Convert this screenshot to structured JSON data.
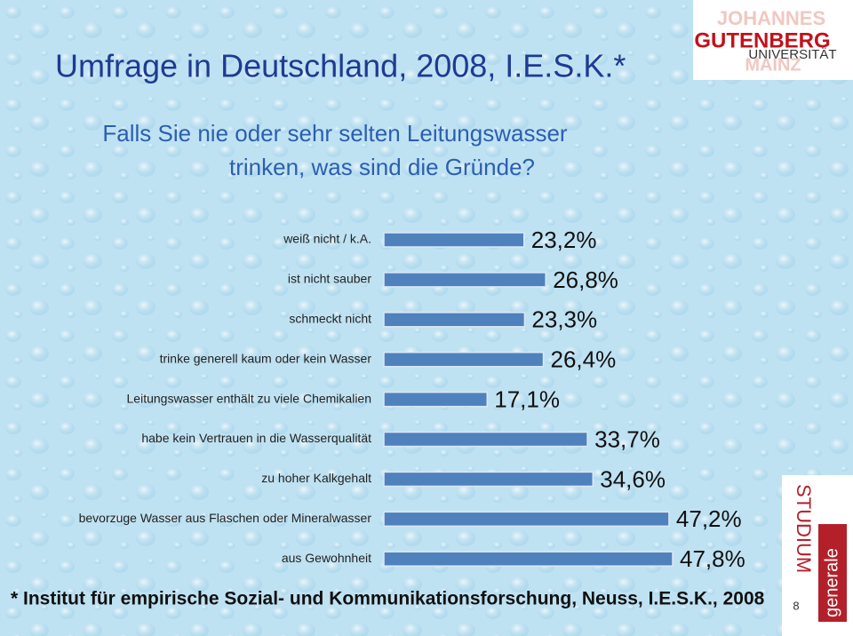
{
  "slide": {
    "title": "Umfrage in Deutschland, 2008, I.E.S.K.*",
    "subtitle_lines": [
      "Falls Sie nie oder sehr selten Leitungswasser",
      "trinken, was sind die Gründe?"
    ],
    "footnote": "* Institut für empirische Sozial- und Kommunikationsforschung, Neuss, I.E.S.K., 2008",
    "logo_lines": [
      "JOHANNES",
      "GUTENBERG",
      "UNIVERSITÄT",
      "MAINZ"
    ],
    "badge_lines": [
      "STUDIUM",
      "generale"
    ],
    "page_number": "8"
  },
  "chart_data": {
    "type": "bar",
    "orientation": "horizontal",
    "color": "#4f81bd",
    "categories": [
      "weiß nicht / k.A.",
      "ist nicht sauber",
      "schmeckt nicht",
      "trinke generell kaum oder kein Wasser",
      "Leitungswasser enthält zu viele Chemikalien",
      "habe kein Vertrauen in die Wasserqualität",
      "zu hoher Kalkgehalt",
      "bevorzuge Wasser aus Flaschen oder Mineralwasser",
      "aus Gewohnheit"
    ],
    "values": [
      23.2,
      26.8,
      23.3,
      26.4,
      17.1,
      33.7,
      34.6,
      47.2,
      47.8
    ],
    "value_labels": [
      "23,2%",
      "26,8%",
      "23,3%",
      "26,4%",
      "17,1%",
      "33,7%",
      "34,6%",
      "47,2%",
      "47,8%"
    ]
  }
}
